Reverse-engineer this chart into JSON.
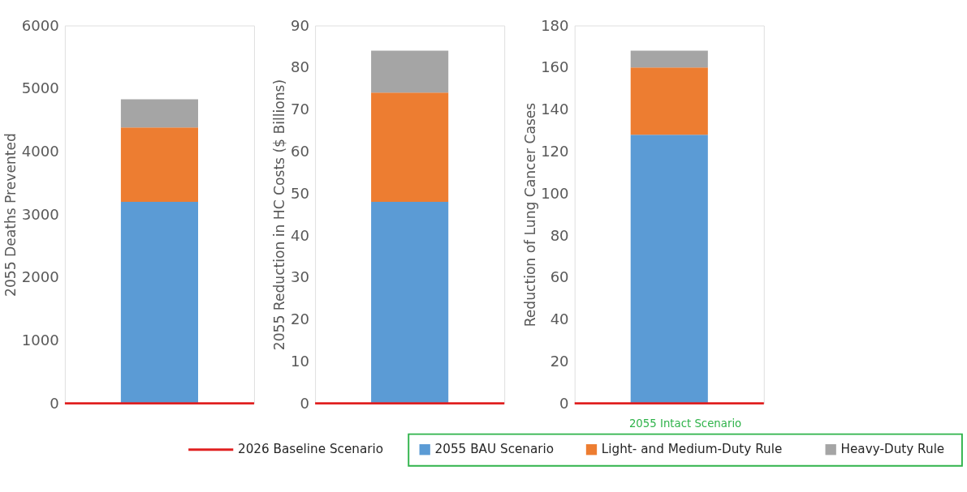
{
  "chart_data": [
    {
      "type": "bar",
      "stacked": true,
      "categories": [
        null
      ],
      "ylabel": "2055 Deaths Prevented",
      "ylim": [
        0,
        6000
      ],
      "yticks": [
        0,
        1000,
        2000,
        3000,
        4000,
        5000,
        6000
      ],
      "grid": false,
      "legend": "bottom",
      "legend_title": "2055 Intact Scenario",
      "series": [
        {
          "name": "2055 BAU Scenario",
          "color": "#5b9bd5",
          "values": [
            3200
          ]
        },
        {
          "name": "Light- and Medium-Duty Rule",
          "color": "#ed7d31",
          "values": [
            1180
          ]
        },
        {
          "name": "Heavy-Duty Rule",
          "color": "#a5a5a5",
          "values": [
            450
          ]
        }
      ],
      "ref_lines": [
        {
          "axis": "y",
          "value": 0,
          "label": "2026 Baseline Scenario",
          "color": "#e02020"
        }
      ]
    },
    {
      "type": "bar",
      "stacked": true,
      "categories": [
        null
      ],
      "ylabel": "2055 Reduction in HC Costs ($ Billions)",
      "ylim": [
        0,
        90
      ],
      "yticks": [
        0,
        10,
        20,
        30,
        40,
        50,
        60,
        70,
        80,
        90
      ],
      "grid": false,
      "series": [
        {
          "color": "#5b9bd5",
          "values": [
            48
          ]
        },
        {
          "color": "#ed7d31",
          "values": [
            26
          ]
        },
        {
          "color": "#a5a5a5",
          "values": [
            10
          ]
        }
      ],
      "ref_lines": [
        {
          "axis": "y",
          "value": 0,
          "color": "#e02020"
        }
      ]
    },
    {
      "type": "bar",
      "stacked": true,
      "categories": [
        null
      ],
      "ylabel": "Reduction of Lung Cancer Cases",
      "ylim": [
        0,
        180
      ],
      "yticks": [
        0,
        20,
        40,
        60,
        80,
        100,
        120,
        140,
        160,
        180
      ],
      "grid": false,
      "series": [
        {
          "color": "#5b9bd5",
          "values": [
            128
          ]
        },
        {
          "color": "#ed7d31",
          "values": [
            32
          ]
        },
        {
          "color": "#a5a5a5",
          "values": [
            8
          ]
        }
      ],
      "ref_lines": [
        {
          "axis": "y",
          "value": 0,
          "color": "#e02020"
        }
      ]
    }
  ]
}
